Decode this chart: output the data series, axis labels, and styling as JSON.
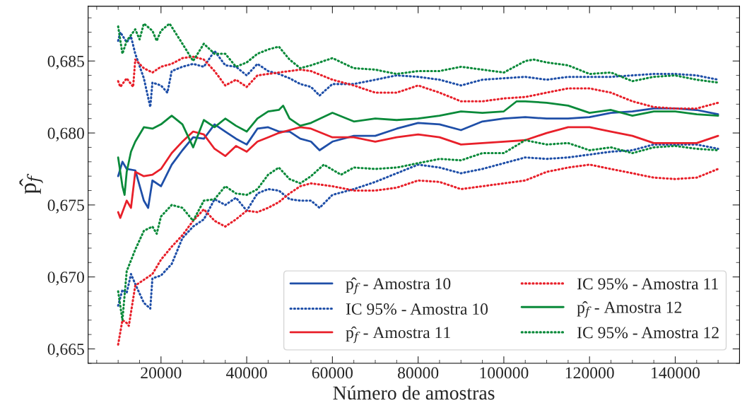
{
  "chart_data": {
    "type": "line",
    "xlabel": "Número de amostras",
    "ylabel": "p̂$_{f}$",
    "xlim": [
      3000,
      155000
    ],
    "xticks": [
      20000,
      40000,
      60000,
      80000,
      100000,
      120000,
      140000
    ],
    "ylim": [
      0.664,
      0.6888
    ],
    "yticks": [
      {
        "value": 0.665,
        "label": "0,665"
      },
      {
        "value": 0.67,
        "label": "0,670"
      },
      {
        "value": 0.675,
        "label": "0,675"
      },
      {
        "value": 0.68,
        "label": "0,680"
      },
      {
        "value": 0.685,
        "label": "0,685"
      }
    ],
    "grid": false,
    "legend": "bottom right",
    "marker": "none",
    "series": [
      {
        "name": "p̂$_{f}$ - Amostra 10",
        "color": "#1f4fa8",
        "line_style": "solid",
        "x": [
          10000,
          11000,
          12000,
          14000,
          16000,
          17000,
          18000,
          20000,
          22500,
          25000,
          27500,
          30000,
          32500,
          35000,
          37500,
          40000,
          42500,
          45000,
          47500,
          50000,
          52500,
          55000,
          57000,
          60000,
          65000,
          70000,
          75000,
          80000,
          85000,
          90000,
          95000,
          100000,
          105000,
          110000,
          115000,
          120000,
          125000,
          130000,
          135000,
          140000,
          145000,
          150000
        ],
        "values": [
          0.677,
          0.678,
          0.6775,
          0.6774,
          0.6753,
          0.6748,
          0.6767,
          0.6763,
          0.6778,
          0.6788,
          0.6797,
          0.6796,
          0.6806,
          0.6801,
          0.6796,
          0.6792,
          0.6803,
          0.6804,
          0.6801,
          0.6801,
          0.6796,
          0.6794,
          0.6788,
          0.6794,
          0.6798,
          0.6798,
          0.6803,
          0.6807,
          0.6806,
          0.6802,
          0.6808,
          0.681,
          0.6811,
          0.681,
          0.681,
          0.6811,
          0.6814,
          0.6815,
          0.6817,
          0.6817,
          0.6816,
          0.6813
        ]
      },
      {
        "name": "IC 95% - Amostra 10",
        "color": "#1f4fa8",
        "line_style": "dotted",
        "x": [
          10000,
          10500,
          12000,
          13000,
          14000,
          16000,
          17500,
          18000,
          20000,
          21500,
          22500,
          25000,
          27500,
          30000,
          32500,
          35000,
          37500,
          40000,
          42500,
          45000,
          47500,
          50000,
          52500,
          55000,
          57000,
          60000,
          65000,
          70000,
          75000,
          80000,
          85000,
          90000,
          95000,
          100000,
          105000,
          110000,
          115000,
          120000,
          125000,
          130000,
          135000,
          140000,
          145000,
          150000
        ],
        "values": [
          0.6864,
          0.687,
          0.6863,
          0.6867,
          0.6855,
          0.6838,
          0.6818,
          0.6835,
          0.6833,
          0.6828,
          0.6843,
          0.6846,
          0.6848,
          0.6846,
          0.6857,
          0.6847,
          0.6846,
          0.684,
          0.6848,
          0.6843,
          0.6841,
          0.6838,
          0.6834,
          0.6832,
          0.6826,
          0.6834,
          0.6834,
          0.6837,
          0.684,
          0.6839,
          0.6837,
          0.6833,
          0.6837,
          0.6838,
          0.6839,
          0.6837,
          0.6839,
          0.6839,
          0.6839,
          0.684,
          0.6841,
          0.6841,
          0.684,
          0.6837
        ]
      },
      {
        "color": "#1f4fa8",
        "line_style": "dotted",
        "x": [
          10000,
          11000,
          12000,
          13000,
          14000,
          16000,
          17500,
          18000,
          20000,
          22500,
          25000,
          27500,
          30000,
          32500,
          35000,
          37500,
          40000,
          42500,
          45000,
          47500,
          50000,
          52500,
          55000,
          57000,
          60000,
          65000,
          70000,
          75000,
          80000,
          85000,
          90000,
          95000,
          100000,
          105000,
          110000,
          115000,
          120000,
          125000,
          130000,
          135000,
          140000,
          145000,
          150000
        ],
        "values": [
          0.668,
          0.6691,
          0.6689,
          0.6702,
          0.6695,
          0.6682,
          0.6678,
          0.6699,
          0.6701,
          0.6709,
          0.6727,
          0.6735,
          0.674,
          0.6754,
          0.675,
          0.6755,
          0.6746,
          0.6758,
          0.6761,
          0.676,
          0.6754,
          0.6753,
          0.6753,
          0.6748,
          0.6757,
          0.6761,
          0.6766,
          0.6772,
          0.6778,
          0.6776,
          0.6772,
          0.6775,
          0.6779,
          0.6783,
          0.6782,
          0.6783,
          0.6785,
          0.6787,
          0.6788,
          0.6792,
          0.6792,
          0.6792,
          0.6789
        ]
      },
      {
        "name": "p̂$_{f}$ - Amostra 11",
        "color": "#e8202a",
        "line_style": "solid",
        "x": [
          10000,
          10500,
          12000,
          13000,
          14000,
          16000,
          18000,
          20000,
          22500,
          25000,
          27500,
          30000,
          32500,
          35000,
          37500,
          40000,
          42500,
          45000,
          47500,
          50000,
          52500,
          55000,
          60000,
          65000,
          70000,
          75000,
          80000,
          85000,
          90000,
          95000,
          100000,
          105000,
          110000,
          115000,
          120000,
          125000,
          130000,
          135000,
          140000,
          145000,
          150000
        ],
        "values": [
          0.6745,
          0.6741,
          0.6753,
          0.6748,
          0.6773,
          0.677,
          0.6771,
          0.6775,
          0.6786,
          0.6794,
          0.6801,
          0.6799,
          0.6789,
          0.6784,
          0.6791,
          0.6787,
          0.6794,
          0.6797,
          0.68,
          0.6802,
          0.6804,
          0.6803,
          0.6797,
          0.6797,
          0.6794,
          0.6797,
          0.6799,
          0.6797,
          0.6792,
          0.6793,
          0.6794,
          0.6795,
          0.68,
          0.6804,
          0.6804,
          0.6801,
          0.6798,
          0.6793,
          0.6793,
          0.6793,
          0.6798
        ]
      },
      {
        "name": "IC 95% - Amostra 11",
        "color": "#e8202a",
        "line_style": "dotted",
        "x": [
          10000,
          10500,
          12000,
          13500,
          14000,
          16000,
          18000,
          20000,
          22500,
          25000,
          27500,
          30000,
          32500,
          35000,
          37500,
          40000,
          42500,
          45000,
          47500,
          50000,
          52500,
          55000,
          60000,
          65000,
          70000,
          75000,
          80000,
          85000,
          90000,
          95000,
          100000,
          105000,
          110000,
          115000,
          120000,
          125000,
          130000,
          135000,
          140000,
          145000,
          150000
        ],
        "values": [
          0.6836,
          0.6832,
          0.6838,
          0.6832,
          0.6851,
          0.6845,
          0.6842,
          0.6846,
          0.6848,
          0.6852,
          0.6853,
          0.6851,
          0.6843,
          0.6833,
          0.6837,
          0.6832,
          0.684,
          0.6841,
          0.6842,
          0.6843,
          0.6844,
          0.6843,
          0.6837,
          0.6833,
          0.6828,
          0.6828,
          0.6833,
          0.6828,
          0.6822,
          0.6822,
          0.6824,
          0.6825,
          0.6828,
          0.6831,
          0.6831,
          0.6828,
          0.6822,
          0.6818,
          0.6817,
          0.6817,
          0.6821
        ]
      },
      {
        "color": "#e8202a",
        "line_style": "dotted",
        "x": [
          10000,
          11000,
          12000,
          12500,
          14000,
          16000,
          18000,
          20000,
          22500,
          25000,
          27500,
          30000,
          32500,
          35000,
          37500,
          40000,
          42500,
          45000,
          47500,
          50000,
          52500,
          55000,
          60000,
          65000,
          70000,
          75000,
          80000,
          85000,
          90000,
          95000,
          100000,
          105000,
          110000,
          115000,
          120000,
          125000,
          130000,
          135000,
          140000,
          145000,
          150000
        ],
        "values": [
          0.6653,
          0.667,
          0.6668,
          0.6666,
          0.6694,
          0.6698,
          0.6702,
          0.6712,
          0.6721,
          0.6729,
          0.6739,
          0.6747,
          0.6739,
          0.6735,
          0.674,
          0.6746,
          0.6745,
          0.6748,
          0.6752,
          0.6758,
          0.6763,
          0.6765,
          0.6763,
          0.676,
          0.676,
          0.6762,
          0.6767,
          0.6766,
          0.6761,
          0.6763,
          0.6765,
          0.6767,
          0.6773,
          0.6776,
          0.6778,
          0.6775,
          0.6772,
          0.6769,
          0.6768,
          0.6769,
          0.6775
        ]
      },
      {
        "name": "p̂$_{f}$ - Amostra 12",
        "color": "#0a8a3a",
        "line_style": "solid",
        "x": [
          10000,
          11000,
          11500,
          12000,
          13000,
          14000,
          16000,
          18000,
          20000,
          22500,
          25000,
          27500,
          30000,
          32500,
          35000,
          37500,
          40000,
          42500,
          45000,
          47500,
          48500,
          50000,
          52500,
          55000,
          60000,
          65000,
          70000,
          75000,
          80000,
          85000,
          90000,
          95000,
          100000,
          103000,
          105000,
          110000,
          115000,
          120000,
          125000,
          130000,
          135000,
          140000,
          145000,
          150000
        ],
        "values": [
          0.6783,
          0.6763,
          0.6757,
          0.6773,
          0.6787,
          0.6794,
          0.6804,
          0.6803,
          0.6806,
          0.6812,
          0.6806,
          0.679,
          0.6809,
          0.6804,
          0.681,
          0.6805,
          0.6801,
          0.681,
          0.6815,
          0.6816,
          0.6819,
          0.681,
          0.6805,
          0.6807,
          0.6814,
          0.6808,
          0.681,
          0.6809,
          0.681,
          0.6812,
          0.6815,
          0.6814,
          0.6815,
          0.6822,
          0.6822,
          0.6821,
          0.6819,
          0.6814,
          0.6816,
          0.6812,
          0.6815,
          0.6815,
          0.6813,
          0.6812
        ]
      },
      {
        "name": "IC 95% - Amostra 12",
        "color": "#0a8a3a",
        "line_style": "dotted",
        "x": [
          10000,
          11000,
          12000,
          13000,
          14000,
          15000,
          16000,
          18000,
          19000,
          20000,
          22000,
          25000,
          27500,
          30000,
          32500,
          35000,
          37500,
          40000,
          42500,
          45000,
          47500,
          50000,
          52500,
          55000,
          60000,
          65000,
          70000,
          75000,
          80000,
          85000,
          90000,
          95000,
          100000,
          105000,
          107000,
          110000,
          115000,
          120000,
          125000,
          130000,
          135000,
          140000,
          145000,
          150000
        ],
        "values": [
          0.6874,
          0.6855,
          0.6864,
          0.6868,
          0.6872,
          0.6865,
          0.6876,
          0.6871,
          0.6864,
          0.6871,
          0.6876,
          0.6862,
          0.685,
          0.6862,
          0.6855,
          0.6855,
          0.6846,
          0.6849,
          0.6855,
          0.6858,
          0.686,
          0.6851,
          0.6845,
          0.6847,
          0.6852,
          0.6845,
          0.6844,
          0.6841,
          0.6843,
          0.6843,
          0.6846,
          0.6844,
          0.6842,
          0.685,
          0.6851,
          0.6849,
          0.6847,
          0.6841,
          0.6842,
          0.6836,
          0.6839,
          0.684,
          0.6837,
          0.6835
        ]
      },
      {
        "color": "#0a8a3a",
        "line_style": "dotted",
        "x": [
          10000,
          11000,
          12000,
          14000,
          16000,
          18000,
          19000,
          20000,
          22500,
          25000,
          27500,
          30000,
          32500,
          35000,
          37500,
          40000,
          42500,
          45000,
          47500,
          50000,
          52500,
          55000,
          58000,
          62000,
          65000,
          70000,
          75000,
          80000,
          85000,
          90000,
          95000,
          100000,
          105000,
          110000,
          115000,
          120000,
          125000,
          130000,
          135000,
          140000,
          145000,
          150000
        ],
        "values": [
          0.669,
          0.667,
          0.6704,
          0.6719,
          0.6732,
          0.6735,
          0.673,
          0.6742,
          0.675,
          0.6748,
          0.6739,
          0.6753,
          0.6754,
          0.6763,
          0.6758,
          0.6757,
          0.6761,
          0.6771,
          0.6776,
          0.6768,
          0.6765,
          0.677,
          0.6778,
          0.6771,
          0.6776,
          0.6775,
          0.6776,
          0.6779,
          0.6782,
          0.6781,
          0.6786,
          0.6786,
          0.6795,
          0.6792,
          0.6793,
          0.6788,
          0.679,
          0.6786,
          0.679,
          0.6791,
          0.6789,
          0.6788
        ]
      }
    ]
  }
}
